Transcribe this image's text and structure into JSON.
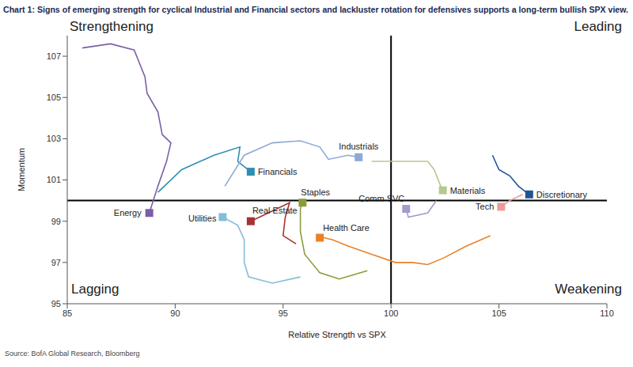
{
  "chart_data": {
    "type": "scatter",
    "title": "Chart 1: Signs of emerging strength for cyclical Industrial and Financial sectors and lackluster rotation for defensives supports a long-term bullish SPX view.",
    "source": "Source: BofA Global Research, Bloomberg",
    "x_label": "Relative Strength vs SPX",
    "y_label": "Momentum",
    "xlim": [
      85,
      110
    ],
    "xticks": [
      85,
      90,
      95,
      100,
      105,
      110
    ],
    "ylim": [
      95,
      108
    ],
    "yticks": [
      95,
      97,
      99,
      101,
      103,
      105,
      107
    ],
    "grid": false,
    "marker": "square",
    "line_style": "solid",
    "reference_lines": {
      "x": 100,
      "y": 100
    },
    "quadrant_labels": {
      "top_left": "Strengthening",
      "top_right": "Leading",
      "bottom_left": "Lagging",
      "bottom_right": "Weakening"
    },
    "series": [
      {
        "name": "Energy",
        "color": "#7b5ea7",
        "x": [
          85.7,
          87.0,
          88.1,
          88.6,
          88.7,
          89.2,
          89.4,
          89.8,
          89.6,
          89.2,
          88.8
        ],
        "y": [
          107.4,
          107.6,
          107.3,
          106.0,
          105.2,
          104.3,
          103.2,
          102.8,
          101.9,
          100.7,
          99.4
        ]
      },
      {
        "name": "Financials",
        "color": "#2f8fb0",
        "x": [
          89.2,
          90.3,
          91.8,
          93.0,
          92.9,
          93.5
        ],
        "y": [
          100.4,
          101.5,
          102.2,
          102.6,
          101.9,
          101.4
        ]
      },
      {
        "name": "Industrials",
        "color": "#8ea9d6",
        "x": [
          92.3,
          93.2,
          94.5,
          95.8,
          96.7,
          97.1,
          98.0,
          98.5
        ],
        "y": [
          100.7,
          102.2,
          102.8,
          102.9,
          102.6,
          102.0,
          102.2,
          102.1
        ]
      },
      {
        "name": "Materials",
        "color": "#b4c98f",
        "x": [
          99.1,
          100.6,
          101.7,
          102.0,
          102.3,
          102.4
        ],
        "y": [
          101.9,
          101.9,
          101.9,
          101.5,
          100.7,
          100.5
        ]
      },
      {
        "name": "Comm SVC",
        "color": "#a39bc9",
        "x": [
          102.1,
          101.7,
          100.8,
          100.7
        ],
        "y": [
          100.0,
          99.4,
          99.2,
          99.6
        ]
      },
      {
        "name": "Discretionary",
        "color": "#1f5596",
        "x": [
          104.7,
          105.0,
          105.5,
          105.9,
          106.4
        ],
        "y": [
          102.2,
          101.5,
          101.2,
          100.7,
          100.3
        ]
      },
      {
        "name": "Tech",
        "color": "#ec9a9c",
        "x": [
          106.1,
          105.5,
          105.1
        ],
        "y": [
          100.3,
          100.0,
          99.7
        ]
      },
      {
        "name": "Health Care",
        "color": "#e8822a",
        "x": [
          104.6,
          103.5,
          102.4,
          101.7,
          101.0,
          100.2,
          99.1,
          98.0,
          97.3,
          96.9,
          96.7
        ],
        "y": [
          98.3,
          97.8,
          97.2,
          96.9,
          97.0,
          97.0,
          97.4,
          97.8,
          98.1,
          98.2,
          98.2
        ]
      },
      {
        "name": "Staples",
        "color": "#8c9b3a",
        "x": [
          98.9,
          97.6,
          96.7,
          96.0,
          95.8,
          95.8,
          95.9
        ],
        "y": [
          96.6,
          96.2,
          96.5,
          97.4,
          98.5,
          99.6,
          99.9
        ]
      },
      {
        "name": "Real Estate",
        "color": "#a83232",
        "x": [
          95.6,
          95.0,
          95.1,
          95.3,
          94.5,
          93.5
        ],
        "y": [
          97.9,
          98.3,
          99.2,
          99.9,
          99.5,
          99.0
        ]
      },
      {
        "name": "Utilities",
        "color": "#86bcd9",
        "x": [
          95.8,
          94.5,
          93.4,
          93.2,
          93.2,
          92.9,
          92.2
        ],
        "y": [
          96.3,
          96.0,
          96.3,
          97.0,
          98.1,
          98.8,
          99.2
        ]
      }
    ]
  }
}
